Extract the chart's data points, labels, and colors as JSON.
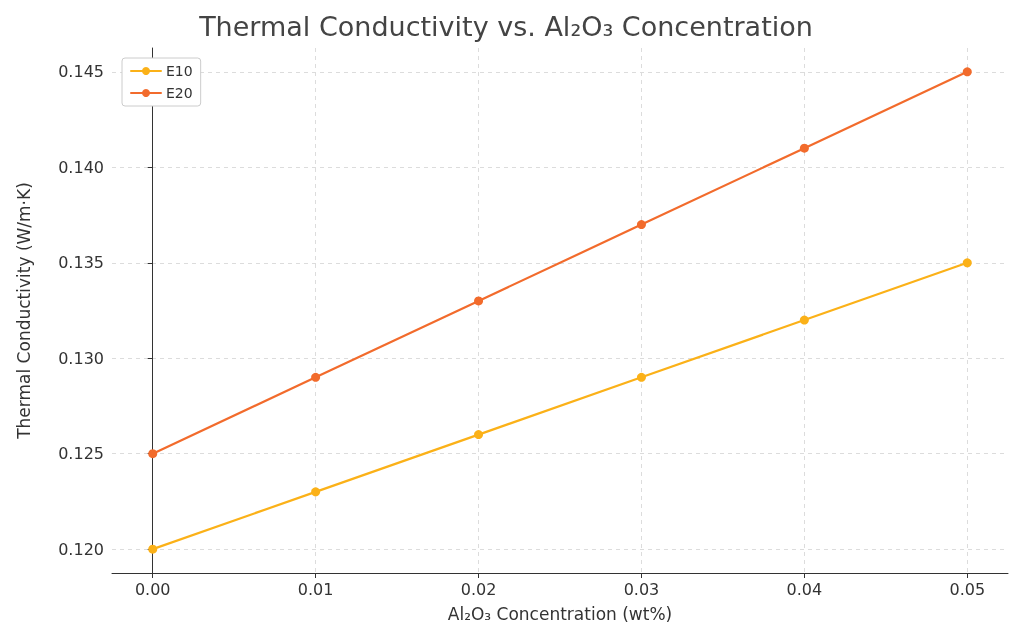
{
  "chart_data": {
    "type": "line",
    "title": "Thermal Conductivity vs. Al₂O₃ Concentration",
    "xlabel": "Al₂O₃ Concentration (wt%)",
    "ylabel": "Thermal Conductivity (W/m·K)",
    "x": [
      0,
      0.01,
      0.02,
      0.03,
      0.04,
      0.05
    ],
    "series": [
      {
        "name": "E10",
        "color": "#fbb118",
        "values": [
          0.12,
          0.123,
          0.126,
          0.129,
          0.132,
          0.135
        ]
      },
      {
        "name": "E20",
        "color": "#f26b2c",
        "values": [
          0.125,
          0.129,
          0.133,
          0.137,
          0.141,
          0.145
        ]
      }
    ],
    "xlim": [
      -0.0025,
      0.0525
    ],
    "xticks": [
      {
        "value": 0,
        "label": "0.00"
      },
      {
        "value": 0.01,
        "label": "0.01"
      },
      {
        "value": 0.02,
        "label": "0.02"
      },
      {
        "value": 0.03,
        "label": "0.03"
      },
      {
        "value": 0.04,
        "label": "0.04"
      },
      {
        "value": 0.05,
        "label": "0.05"
      }
    ],
    "ylim": [
      0.11875,
      0.14625
    ],
    "yticks": [
      {
        "value": 0.12,
        "label": "0.120"
      },
      {
        "value": 0.125,
        "label": "0.125"
      },
      {
        "value": 0.13,
        "label": "0.130"
      },
      {
        "value": 0.135,
        "label": "0.135"
      },
      {
        "value": 0.14,
        "label": "0.140"
      },
      {
        "value": 0.145,
        "label": "0.145"
      }
    ],
    "grid": true,
    "legend": "top left",
    "marker": "circle",
    "line_style": "solid"
  }
}
